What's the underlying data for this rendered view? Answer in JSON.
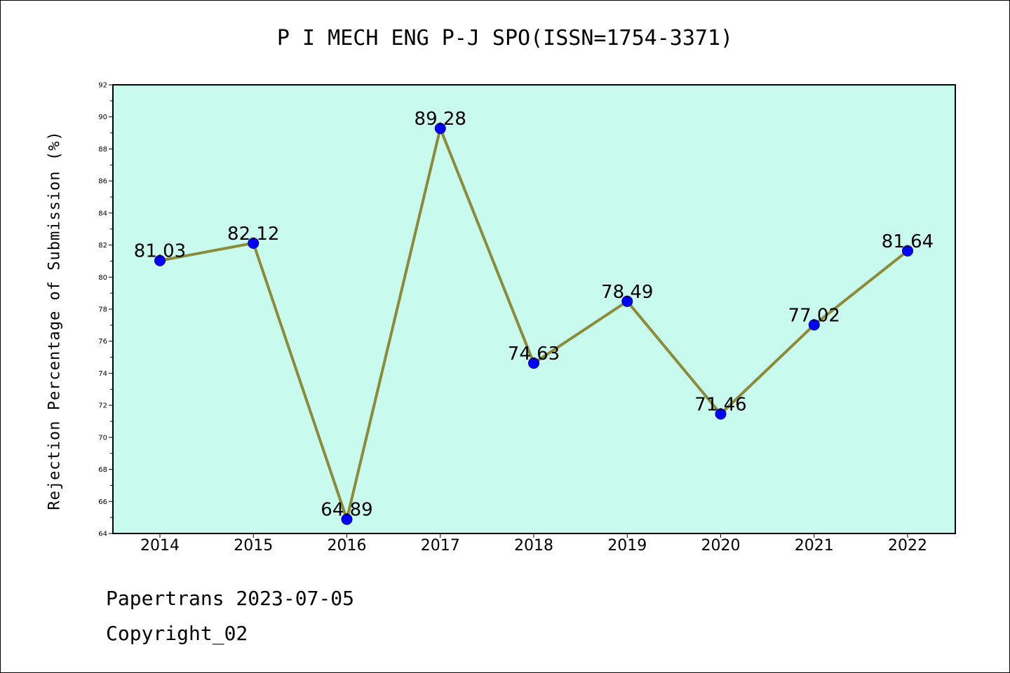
{
  "chart_data": {
    "type": "line",
    "title": "P I MECH ENG P-J SPO(ISSN=1754-3371)",
    "xlabel": "",
    "ylabel": "Rejection Percentage of Submission (%)",
    "categories": [
      "2014",
      "2015",
      "2016",
      "2017",
      "2018",
      "2019",
      "2020",
      "2021",
      "2022"
    ],
    "series": [
      {
        "values": [
          81.03,
          82.12,
          64.89,
          89.28,
          74.63,
          78.49,
          71.46,
          77.02,
          81.64
        ],
        "data_labels": [
          "81.03",
          "82.12",
          "64.89",
          "89.28",
          "74.63",
          "78.49",
          "71.46",
          "77.02",
          "81.64"
        ]
      }
    ],
    "ylim": [
      64,
      92
    ],
    "yticks": [
      "64",
      "66",
      "68",
      "70",
      "72",
      "74",
      "76",
      "78",
      "80",
      "82",
      "84",
      "86",
      "88",
      "90",
      "92"
    ],
    "grid": false,
    "colors": {
      "plot_background": "#c8fbee",
      "line": "#8b8b3a",
      "marker": "#0000ff"
    }
  },
  "footer": {
    "date_text": "Papertrans 2023-07-05",
    "copyright_text": "Copyright_02"
  }
}
